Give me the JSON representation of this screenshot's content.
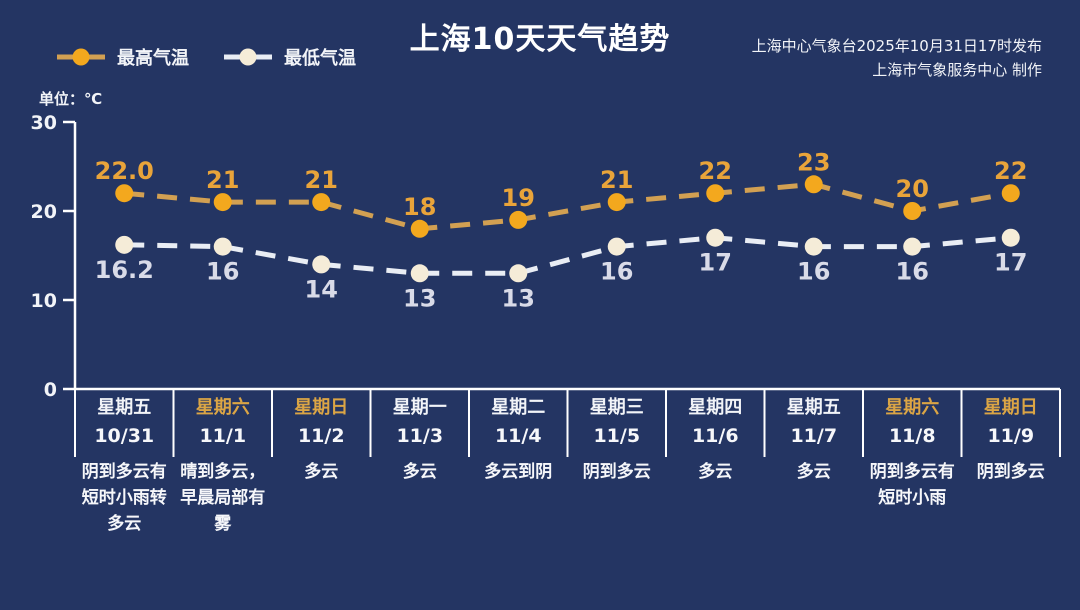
{
  "header": {
    "title": "上海10天天气趋势",
    "publisher_line1": "上海中心气象台2025年10月31日17时发布",
    "publisher_line2": "上海市气象服务中心  制作"
  },
  "legend": {
    "high_label": "最高气温",
    "low_label": "最低气温"
  },
  "axis": {
    "unit_label": "单位：℃",
    "yticks": [
      0,
      10,
      20,
      30
    ]
  },
  "colors": {
    "background": "#243563",
    "high_line": "#d2a052",
    "high_marker": "#f3a81e",
    "high_value_label": "#e9a43a",
    "low_line": "#e9edf4",
    "low_marker": "#f5ecd8",
    "low_value_label": "#d9dbe8",
    "axis_line": "#ffffff",
    "weekend_text": "#dba545",
    "text": "#f2f4f8"
  },
  "chart_data": {
    "type": "line",
    "title": "上海10天天气趋势",
    "ylabel": "单位：℃",
    "ylim": [
      0,
      30
    ],
    "yticks": [
      0,
      10,
      20,
      30
    ],
    "grid": false,
    "legend_position": "top-left",
    "line_style": "dashed",
    "categories": [
      "10/31",
      "11/1",
      "11/2",
      "11/3",
      "11/4",
      "11/5",
      "11/6",
      "11/7",
      "11/8",
      "11/9"
    ],
    "series": [
      {
        "name": "最高气温",
        "values": [
          22.0,
          21,
          21,
          18,
          19,
          21,
          22,
          23,
          20,
          22
        ]
      },
      {
        "name": "最低气温",
        "values": [
          16.2,
          16,
          14,
          13,
          13,
          16,
          17,
          16,
          16,
          17
        ]
      }
    ]
  },
  "days": [
    {
      "weekday": "星期五",
      "date": "10/31",
      "desc": "阴到多云有短时小雨转多云",
      "weekend": false,
      "high_label": "22.0",
      "low_label": "16.2"
    },
    {
      "weekday": "星期六",
      "date": "11/1",
      "desc": "晴到多云，早晨局部有雾",
      "weekend": true,
      "high_label": "21",
      "low_label": "16"
    },
    {
      "weekday": "星期日",
      "date": "11/2",
      "desc": "多云",
      "weekend": true,
      "high_label": "21",
      "low_label": "14"
    },
    {
      "weekday": "星期一",
      "date": "11/3",
      "desc": "多云",
      "weekend": false,
      "high_label": "18",
      "low_label": "13"
    },
    {
      "weekday": "星期二",
      "date": "11/4",
      "desc": "多云到阴",
      "weekend": false,
      "high_label": "19",
      "low_label": "13"
    },
    {
      "weekday": "星期三",
      "date": "11/5",
      "desc": "阴到多云",
      "weekend": false,
      "high_label": "21",
      "low_label": "16"
    },
    {
      "weekday": "星期四",
      "date": "11/6",
      "desc": "多云",
      "weekend": false,
      "high_label": "22",
      "low_label": "17"
    },
    {
      "weekday": "星期五",
      "date": "11/7",
      "desc": "多云",
      "weekend": false,
      "high_label": "23",
      "low_label": "16"
    },
    {
      "weekday": "星期六",
      "date": "11/8",
      "desc": "阴到多云有短时小雨",
      "weekend": true,
      "high_label": "20",
      "low_label": "16"
    },
    {
      "weekday": "星期日",
      "date": "11/9",
      "desc": "阴到多云",
      "weekend": true,
      "high_label": "22",
      "low_label": "17"
    }
  ]
}
